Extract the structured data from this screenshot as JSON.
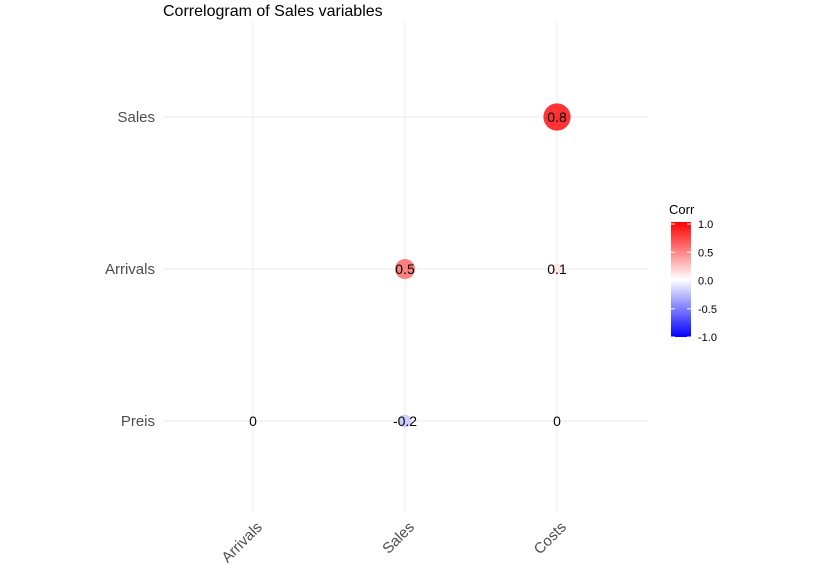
{
  "chart_data": {
    "type": "scatter",
    "title": "Correlogram of Sales variables",
    "x_categories": [
      "Arrivals",
      "Sales",
      "Costs"
    ],
    "y_categories": [
      "Preis",
      "Arrivals",
      "Sales"
    ],
    "points": [
      {
        "x": "Arrivals",
        "y": "Preis",
        "value": 0,
        "label": "0"
      },
      {
        "x": "Sales",
        "y": "Preis",
        "value": -0.2,
        "label": "-0.2"
      },
      {
        "x": "Costs",
        "y": "Preis",
        "value": 0,
        "label": "0"
      },
      {
        "x": "Sales",
        "y": "Arrivals",
        "value": 0.5,
        "label": "0.5"
      },
      {
        "x": "Costs",
        "y": "Arrivals",
        "value": 0.1,
        "label": "0.1"
      },
      {
        "x": "Costs",
        "y": "Sales",
        "value": 0.8,
        "label": "0.8"
      }
    ],
    "legend": {
      "title": "Corr",
      "ticks": [
        "1.0",
        "0.5",
        "0.0",
        "-0.5",
        "-1.0"
      ],
      "range": [
        -1,
        1
      ],
      "colors": {
        "low": "#0000ff",
        "mid": "#ffffff",
        "high": "#ff0000"
      },
      "position": "right"
    },
    "grid": true
  }
}
